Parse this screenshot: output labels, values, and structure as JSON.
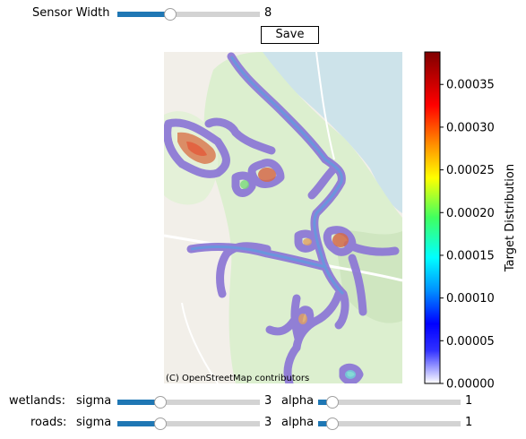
{
  "controls": {
    "sensor_width": {
      "label": "Sensor Width",
      "value": "8",
      "fraction": 0.38
    },
    "save_label": "Save",
    "wetlands": {
      "label": "wetlands:",
      "sigma_label": "sigma",
      "sigma_value": "3",
      "sigma_fraction": 0.3,
      "alpha_label": "alpha",
      "alpha_value": "1",
      "alpha_fraction": 0.1
    },
    "roads": {
      "label": "roads:",
      "sigma_label": "sigma",
      "sigma_value": "3",
      "sigma_fraction": 0.3,
      "alpha_label": "alpha",
      "alpha_value": "1",
      "alpha_fraction": 0.1
    }
  },
  "map": {
    "attribution": "(C) OpenStreetMap contributors"
  },
  "colorbar": {
    "label": "Target Distribution",
    "ticks": [
      "0.00000",
      "0.00005",
      "0.00010",
      "0.00015",
      "0.00020",
      "0.00025",
      "0.00030",
      "0.00035"
    ],
    "tick_values": [
      0,
      5e-05,
      0.0001,
      0.00015,
      0.0002,
      0.00025,
      0.0003,
      0.00035
    ],
    "max": 0.000388
  }
}
